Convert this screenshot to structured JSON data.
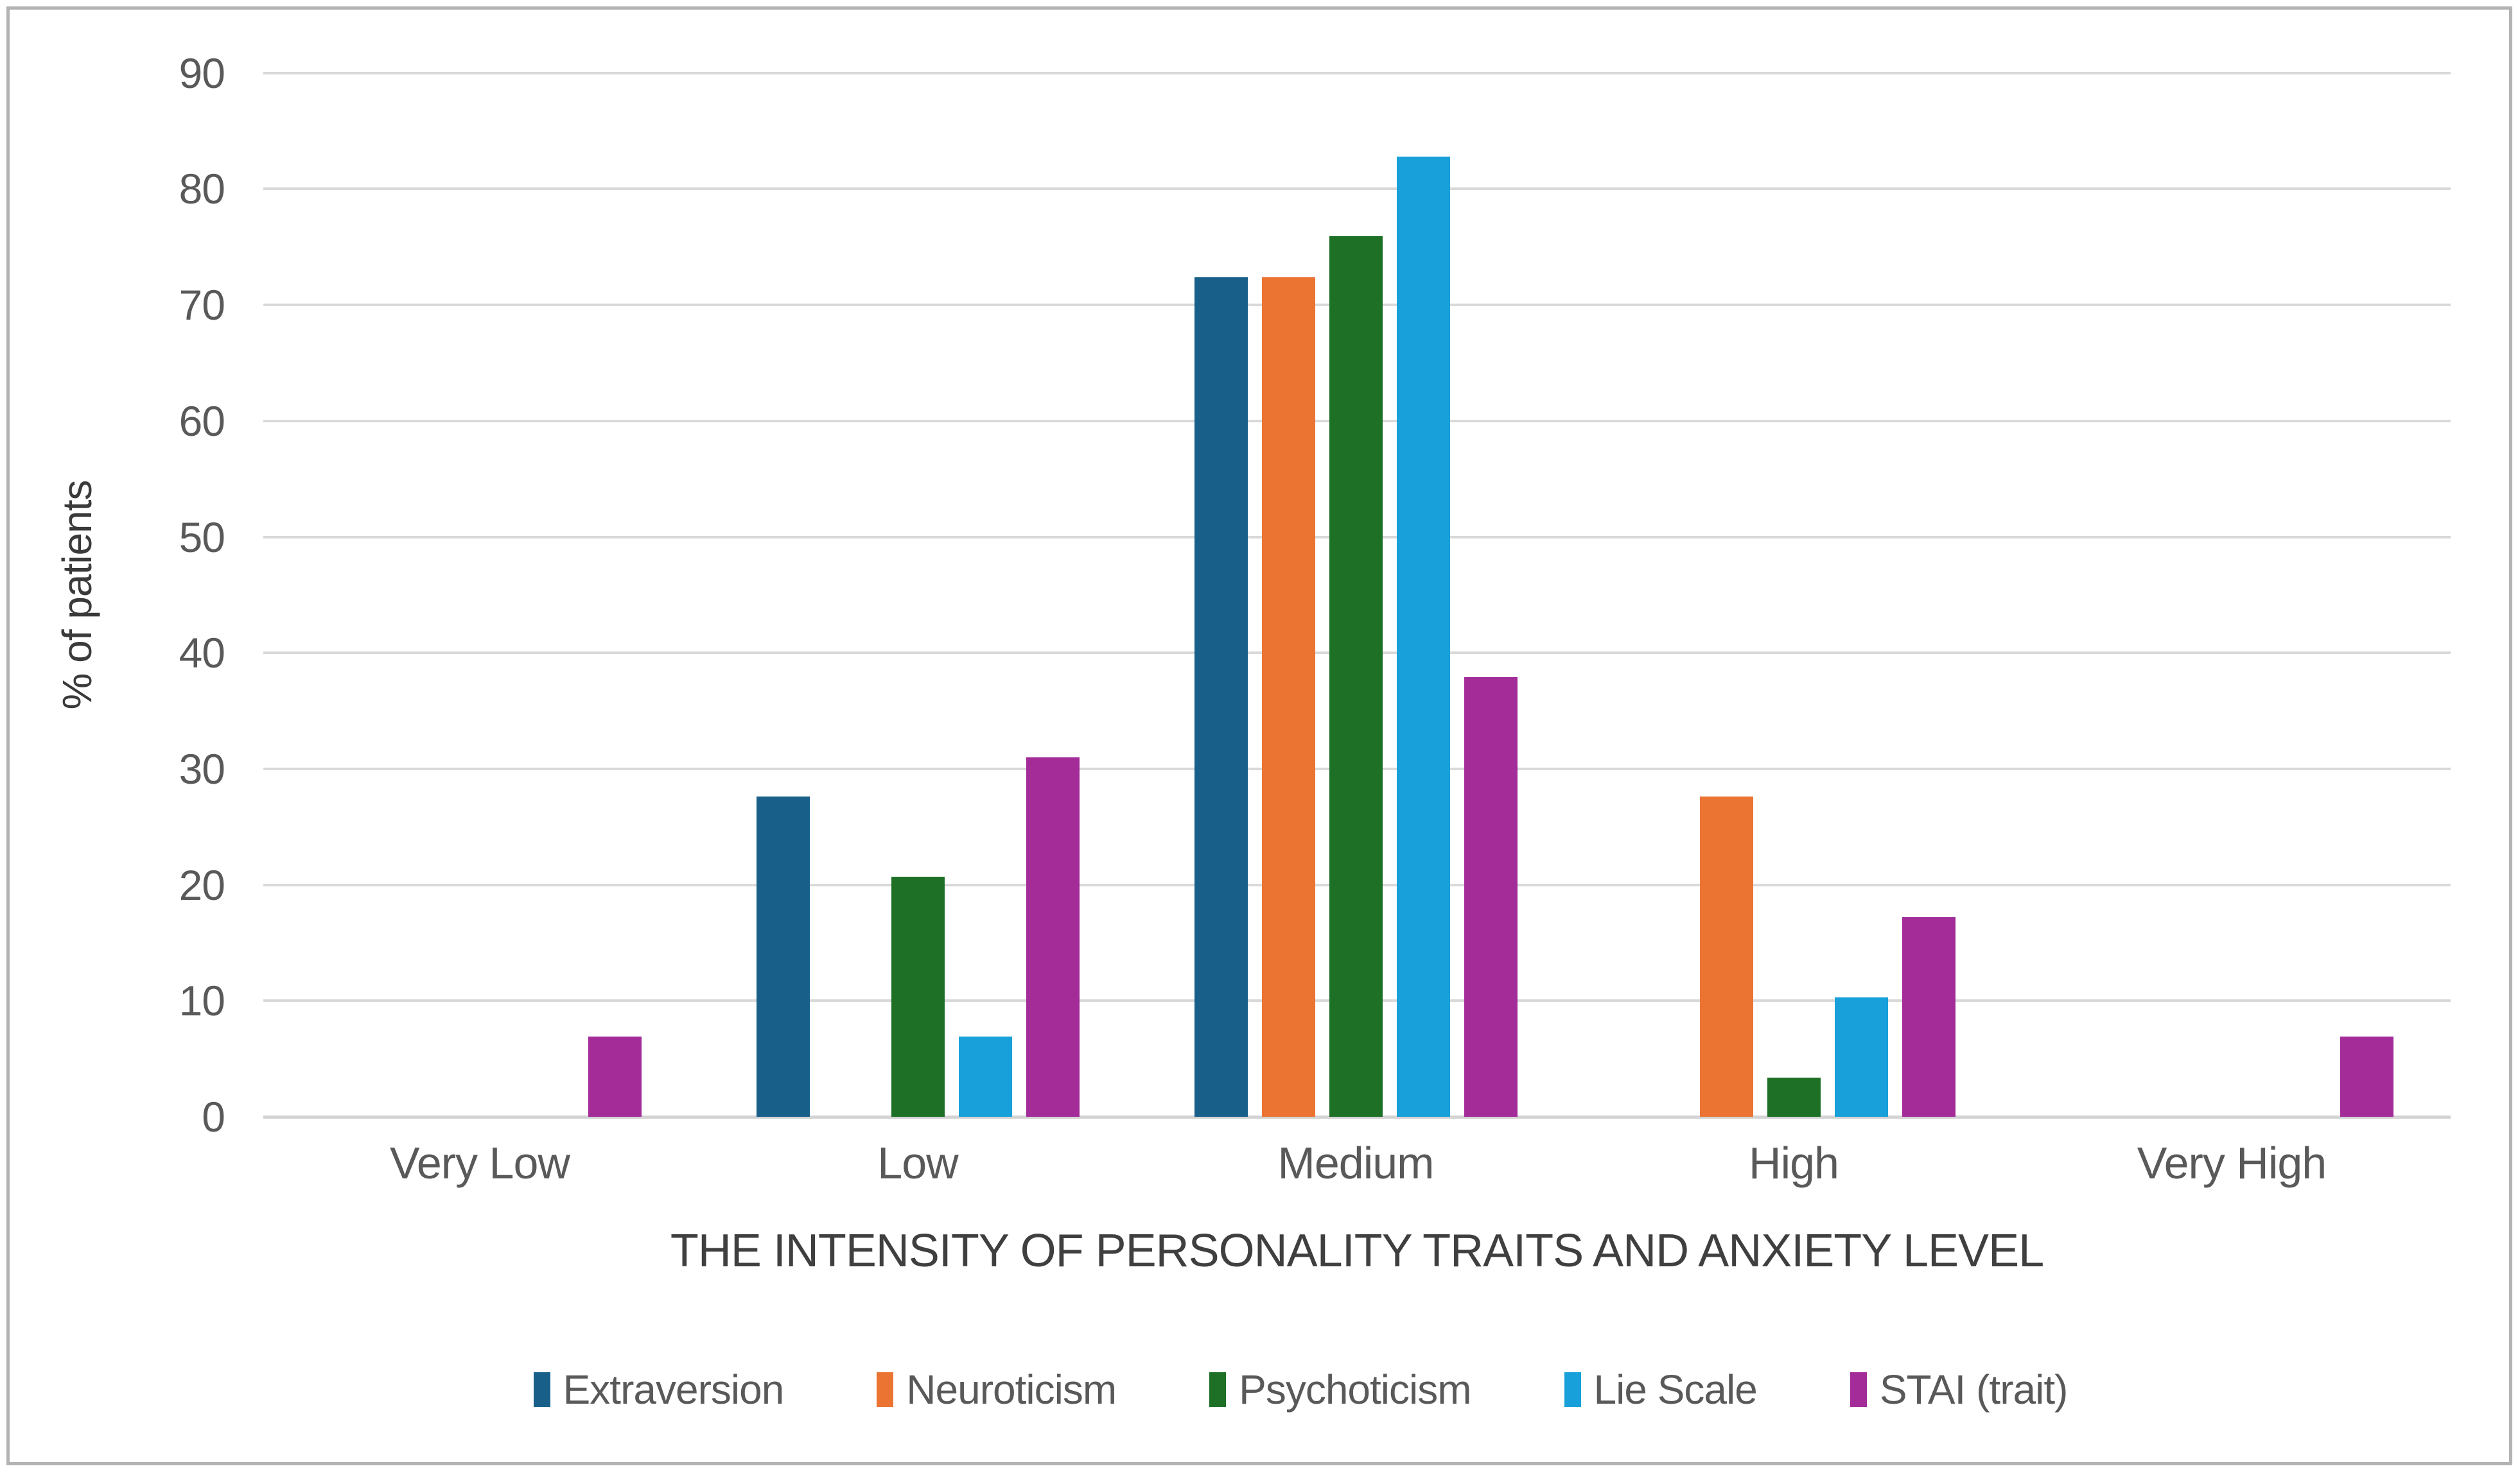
{
  "chart_data": {
    "type": "bar",
    "title": "",
    "categories": [
      "Very Low",
      "Low",
      "Medium",
      "High",
      "Very High"
    ],
    "series": [
      {
        "name": "Extraversion",
        "color": "#18608a",
        "values": [
          0,
          27.6,
          72.4,
          0,
          0
        ]
      },
      {
        "name": "Neuroticism",
        "color": "#eb7433",
        "values": [
          0,
          0,
          72.4,
          27.6,
          0
        ]
      },
      {
        "name": "Psychoticism",
        "color": "#1e7026",
        "values": [
          0,
          20.7,
          75.9,
          3.4,
          0
        ]
      },
      {
        "name": "Lie Scale",
        "color": "#17a0da",
        "values": [
          0,
          6.9,
          82.8,
          10.3,
          0
        ]
      },
      {
        "name": "STAI (trait)",
        "color": "#a32c99",
        "values": [
          6.9,
          31.0,
          37.9,
          17.2,
          6.9
        ]
      }
    ],
    "xlabel": "THE INTENSITY OF PERSONALITY TRAITS AND ANXIETY LEVEL",
    "ylabel": "% of patients",
    "ylim": [
      0,
      90
    ],
    "yticks": [
      0,
      10,
      20,
      30,
      40,
      50,
      60,
      70,
      80,
      90
    ],
    "grid": "horizontal",
    "legend_position": "bottom"
  },
  "colors": {
    "gridline": "#d9d9d9",
    "axis_text": "#595959",
    "title_text": "#3f3f3f",
    "frame_border": "#b3b3b3",
    "background": "#ffffff"
  }
}
